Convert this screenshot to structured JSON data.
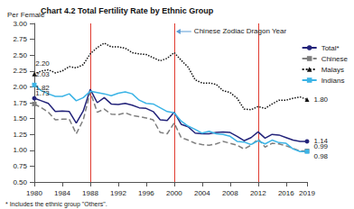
{
  "chart_data": {
    "type": "line",
    "title": "Chart 4.2 Total Fertility Rate by Ethnic Group",
    "y_label": "Per Female",
    "annotation": "Chinese Zodiac Dragon Year",
    "dragon_years": [
      1988,
      2000,
      2012
    ],
    "dragon_line_color": "#e03c31",
    "footnote": "* Includes the ethnic group \"Others\".",
    "x": [
      1980,
      1981,
      1982,
      1983,
      1984,
      1985,
      1986,
      1987,
      1988,
      1989,
      1990,
      1991,
      1992,
      1993,
      1994,
      1995,
      1996,
      1997,
      1998,
      1999,
      2000,
      2001,
      2002,
      2003,
      2004,
      2005,
      2006,
      2007,
      2008,
      2009,
      2010,
      2011,
      2012,
      2013,
      2014,
      2015,
      2016,
      2017,
      2018,
      2019
    ],
    "xlim": [
      1980,
      2019
    ],
    "xticks": [
      1980,
      1984,
      1988,
      1992,
      1996,
      2000,
      2004,
      2008,
      2012,
      2016,
      2019
    ],
    "ylim": [
      0.5,
      3
    ],
    "yticks": [
      {
        "value": 0.5,
        "label": "0.50"
      },
      {
        "value": 0.75,
        "label": "0.75"
      },
      {
        "value": 1,
        "label": "1.00"
      },
      {
        "value": 1.25,
        "label": "1.25"
      },
      {
        "value": 1.5,
        "label": "1.50"
      },
      {
        "value": 1.75,
        "label": "1.75"
      },
      {
        "value": 2,
        "label": "2.00"
      },
      {
        "value": 2.25,
        "label": "2.25"
      },
      {
        "value": 2.5,
        "label": "2.50"
      },
      {
        "value": 2.75,
        "label": "2.75"
      },
      {
        "value": 3,
        "label": "3.00"
      }
    ],
    "grid": false,
    "legend": "right",
    "series": [
      {
        "name": "Total*",
        "color": "#23237a",
        "line_style": "solid",
        "marker": "circle",
        "values": [
          1.82,
          1.78,
          1.74,
          1.61,
          1.62,
          1.61,
          1.43,
          1.62,
          1.96,
          1.75,
          1.83,
          1.73,
          1.72,
          1.74,
          1.71,
          1.67,
          1.66,
          1.61,
          1.48,
          1.47,
          1.6,
          1.41,
          1.37,
          1.27,
          1.26,
          1.26,
          1.28,
          1.29,
          1.28,
          1.22,
          1.15,
          1.2,
          1.29,
          1.19,
          1.25,
          1.24,
          1.2,
          1.16,
          1.14,
          1.14
        ],
        "value_labels": [
          "1.82",
          null,
          null,
          null,
          null,
          null,
          null,
          null,
          null,
          null,
          null,
          null,
          null,
          null,
          null,
          null,
          null,
          null,
          null,
          null,
          null,
          null,
          null,
          null,
          null,
          null,
          null,
          null,
          null,
          null,
          null,
          null,
          null,
          null,
          null,
          null,
          null,
          null,
          null,
          "1.14"
        ]
      },
      {
        "name": "Chinese",
        "color": "#7f7f7f",
        "line_style": "dashed",
        "marker": "rect",
        "values": [
          1.73,
          1.67,
          1.6,
          1.48,
          1.49,
          1.49,
          1.26,
          1.48,
          1.92,
          1.6,
          1.65,
          1.57,
          1.56,
          1.59,
          1.55,
          1.53,
          1.51,
          1.48,
          1.28,
          1.26,
          1.43,
          1.2,
          1.16,
          1.11,
          1.09,
          1.08,
          1.1,
          1.14,
          1.11,
          1.08,
          1.02,
          1.08,
          1.18,
          1.05,
          1.11,
          1.1,
          1.07,
          1.03,
          0.99,
          0.99
        ],
        "value_labels": [
          "1.73",
          null,
          null,
          null,
          null,
          null,
          null,
          null,
          null,
          null,
          null,
          null,
          null,
          null,
          null,
          null,
          null,
          null,
          null,
          null,
          null,
          null,
          null,
          null,
          null,
          null,
          null,
          null,
          null,
          null,
          null,
          null,
          null,
          null,
          null,
          null,
          null,
          null,
          null,
          "0.99"
        ]
      },
      {
        "name": "Malays",
        "color": "#111111",
        "line_style": "dotted",
        "marker": "triangle",
        "values": [
          2.2,
          2.25,
          2.27,
          2.22,
          2.25,
          2.32,
          2.3,
          2.35,
          2.52,
          2.62,
          2.69,
          2.63,
          2.63,
          2.61,
          2.54,
          2.52,
          2.51,
          2.46,
          2.41,
          2.45,
          2.54,
          2.42,
          2.31,
          2.11,
          2.06,
          2.06,
          2.04,
          1.94,
          1.91,
          1.82,
          1.65,
          1.64,
          1.69,
          1.66,
          1.73,
          1.79,
          1.79,
          1.82,
          1.84,
          1.8
        ],
        "value_labels": [
          "2.20",
          null,
          null,
          null,
          null,
          null,
          null,
          null,
          null,
          null,
          null,
          null,
          null,
          null,
          null,
          null,
          null,
          null,
          null,
          null,
          null,
          null,
          null,
          null,
          null,
          null,
          null,
          null,
          null,
          null,
          null,
          null,
          null,
          null,
          null,
          null,
          null,
          null,
          null,
          "1.80"
        ]
      },
      {
        "name": "Indians",
        "color": "#3cb4e6",
        "line_style": "solid",
        "marker": "rect",
        "values": [
          2.03,
          1.94,
          1.89,
          1.85,
          1.85,
          1.89,
          1.78,
          1.83,
          1.93,
          1.91,
          1.89,
          1.86,
          1.9,
          1.92,
          1.89,
          1.79,
          1.74,
          1.73,
          1.67,
          1.61,
          1.59,
          1.46,
          1.38,
          1.33,
          1.27,
          1.3,
          1.26,
          1.25,
          1.22,
          1.14,
          1.13,
          1.09,
          1.15,
          1.1,
          1.16,
          1.12,
          1.11,
          1.02,
          0.98,
          0.98
        ],
        "value_labels": [
          "2.03",
          null,
          null,
          null,
          null,
          null,
          null,
          null,
          null,
          null,
          null,
          null,
          null,
          null,
          null,
          null,
          null,
          null,
          null,
          null,
          null,
          null,
          null,
          null,
          null,
          null,
          null,
          null,
          null,
          null,
          null,
          null,
          null,
          null,
          null,
          null,
          null,
          null,
          null,
          "0.98"
        ]
      }
    ]
  }
}
